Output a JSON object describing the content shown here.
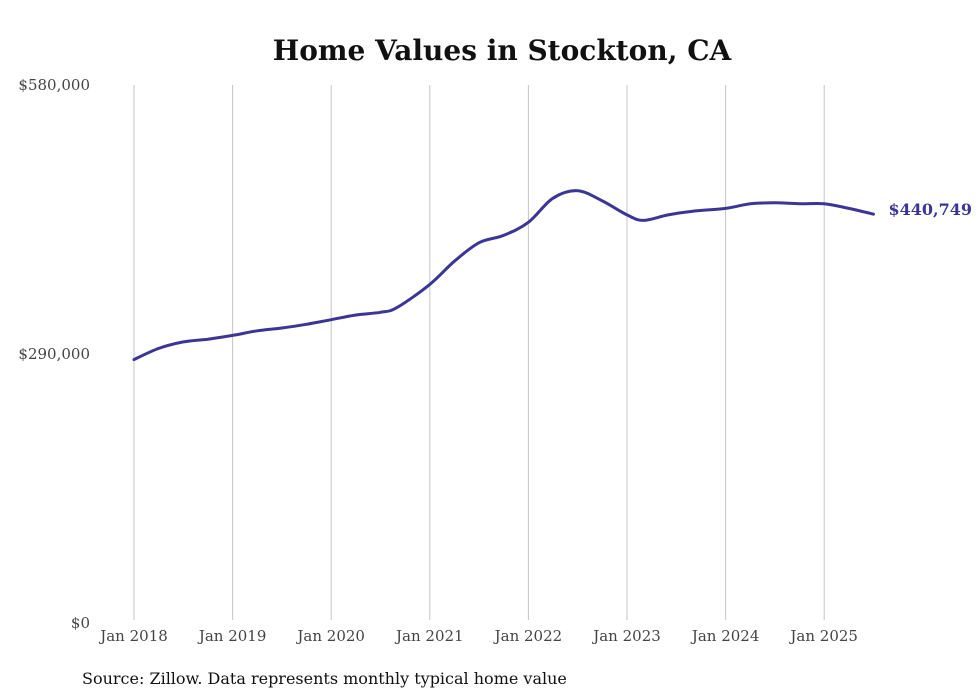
{
  "chart_data": {
    "type": "line",
    "title": "Home Values in Stockton, CA",
    "source": "Source: Zillow. Data represents monthly typical home value",
    "ylim": [
      0,
      580000
    ],
    "y_ticks": [
      {
        "value": 0,
        "label": "$0"
      },
      {
        "value": 290000,
        "label": "$290,000"
      },
      {
        "value": 580000,
        "label": "$580,000"
      }
    ],
    "x_ticks": [
      {
        "value": "2018-01",
        "label": "Jan 2018"
      },
      {
        "value": "2019-01",
        "label": "Jan 2019"
      },
      {
        "value": "2020-01",
        "label": "Jan 2020"
      },
      {
        "value": "2021-01",
        "label": "Jan 2021"
      },
      {
        "value": "2022-01",
        "label": "Jan 2022"
      },
      {
        "value": "2023-01",
        "label": "Jan 2023"
      },
      {
        "value": "2024-01",
        "label": "Jan 2024"
      },
      {
        "value": "2025-01",
        "label": "Jan 2025"
      }
    ],
    "grid_vertical": true,
    "line_color": "#3b3596",
    "end_label": "$440,749",
    "series": [
      {
        "x": [
          "2018-01",
          "2018-04",
          "2018-07",
          "2018-10",
          "2019-01",
          "2019-04",
          "2019-07",
          "2019-10",
          "2020-01",
          "2020-04",
          "2020-07",
          "2020-09",
          "2021-01",
          "2021-04",
          "2021-07",
          "2021-10",
          "2022-01",
          "2022-04",
          "2022-07",
          "2022-10",
          "2023-01",
          "2023-03",
          "2023-06",
          "2023-09",
          "2024-01",
          "2024-04",
          "2024-07",
          "2024-10",
          "2025-01",
          "2025-04",
          "2025-07"
        ],
        "values": [
          284000,
          296000,
          303000,
          306000,
          310000,
          315000,
          318000,
          322000,
          327000,
          332000,
          335000,
          340000,
          365000,
          390000,
          410000,
          418000,
          432000,
          458000,
          466000,
          455000,
          440000,
          434000,
          440000,
          444000,
          447000,
          452000,
          453000,
          452000,
          452000,
          447000,
          440749
        ]
      }
    ]
  }
}
